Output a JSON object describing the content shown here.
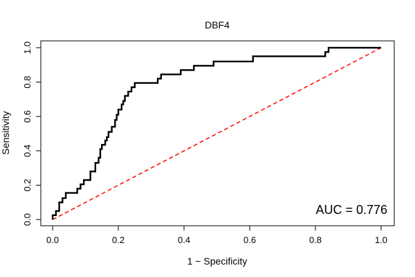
{
  "chart_data": {
    "type": "line",
    "title": "DBF4",
    "xlabel": "1 − Specificity",
    "ylabel": "Sensitivity",
    "xlim": [
      -0.036,
      1.04
    ],
    "ylim": [
      -0.036,
      1.04
    ],
    "xticks": [
      "0.0",
      "0.2",
      "0.4",
      "0.6",
      "0.8",
      "1.0"
    ],
    "yticks": [
      "0.0",
      "0.2",
      "0.4",
      "0.6",
      "0.8",
      "1.0"
    ],
    "grid": false,
    "annotation": "AUC = 0.776",
    "colors": {
      "roc": "#000000",
      "reference": "#ff0000"
    },
    "series": [
      {
        "style": "solid",
        "x": [
          0.0,
          0.0,
          0.01,
          0.01,
          0.02,
          0.02,
          0.03,
          0.03,
          0.04,
          0.04,
          0.075,
          0.075,
          0.085,
          0.085,
          0.095,
          0.095,
          0.115,
          0.115,
          0.13,
          0.13,
          0.14,
          0.14,
          0.145,
          0.145,
          0.15,
          0.15,
          0.16,
          0.16,
          0.165,
          0.165,
          0.17,
          0.17,
          0.18,
          0.18,
          0.19,
          0.19,
          0.195,
          0.195,
          0.2,
          0.2,
          0.21,
          0.21,
          0.215,
          0.215,
          0.22,
          0.22,
          0.23,
          0.23,
          0.24,
          0.24,
          0.25,
          0.25,
          0.26,
          0.26,
          0.32,
          0.32,
          0.33,
          0.33,
          0.39,
          0.39,
          0.43,
          0.43,
          0.49,
          0.49,
          0.61,
          0.61,
          0.83,
          0.83,
          0.84,
          0.84,
          1.0
        ],
        "y": [
          0.0,
          0.025,
          0.025,
          0.05,
          0.05,
          0.1,
          0.1,
          0.125,
          0.125,
          0.155,
          0.155,
          0.18,
          0.18,
          0.205,
          0.205,
          0.23,
          0.23,
          0.28,
          0.28,
          0.33,
          0.33,
          0.36,
          0.36,
          0.41,
          0.41,
          0.435,
          0.435,
          0.46,
          0.46,
          0.48,
          0.48,
          0.51,
          0.51,
          0.54,
          0.54,
          0.58,
          0.58,
          0.61,
          0.61,
          0.64,
          0.64,
          0.67,
          0.67,
          0.69,
          0.69,
          0.72,
          0.72,
          0.745,
          0.745,
          0.77,
          0.77,
          0.795,
          0.795,
          0.795,
          0.795,
          0.82,
          0.82,
          0.845,
          0.845,
          0.87,
          0.87,
          0.895,
          0.895,
          0.92,
          0.92,
          0.95,
          0.95,
          0.975,
          0.975,
          1.0,
          1.0
        ]
      },
      {
        "style": "dashed",
        "x": [
          0.0,
          1.0
        ],
        "y": [
          0.0,
          1.0
        ]
      }
    ]
  }
}
